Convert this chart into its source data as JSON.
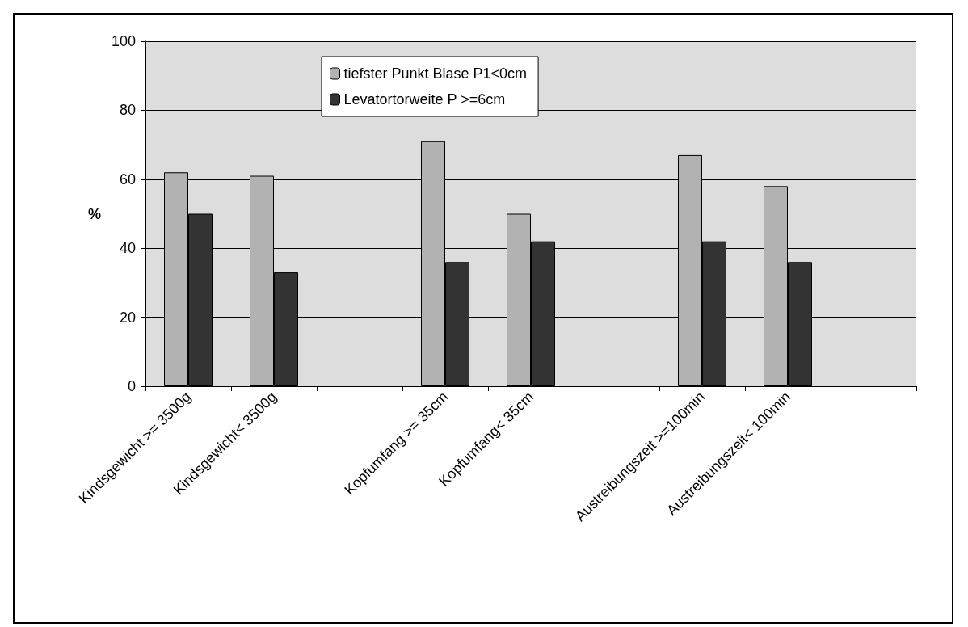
{
  "chart_data": {
    "type": "bar",
    "ylabel": "%",
    "categories": [
      "Kindsgewicht >= 3500g",
      "Kindsgewicht< 3500g",
      null,
      "Kopfumfang >= 35cm",
      "Kopfumfang< 35cm",
      null,
      "Austreibungszeit >=100min",
      "Austreibungszeit< 100min",
      null
    ],
    "series": [
      {
        "name": "tiefster Punkt Blase P1<0cm",
        "color": "#b2b2b2",
        "values": [
          62,
          61,
          null,
          71,
          50,
          null,
          67,
          58,
          null
        ]
      },
      {
        "name": "Levatortorweite P >=6cm",
        "color": "#333333",
        "values": [
          50,
          33,
          null,
          36,
          42,
          null,
          42,
          36,
          null
        ]
      }
    ],
    "ylim": [
      0,
      100
    ],
    "yticks": [
      0,
      20,
      40,
      60,
      80,
      100
    ],
    "grid": "y",
    "legend": "top"
  }
}
